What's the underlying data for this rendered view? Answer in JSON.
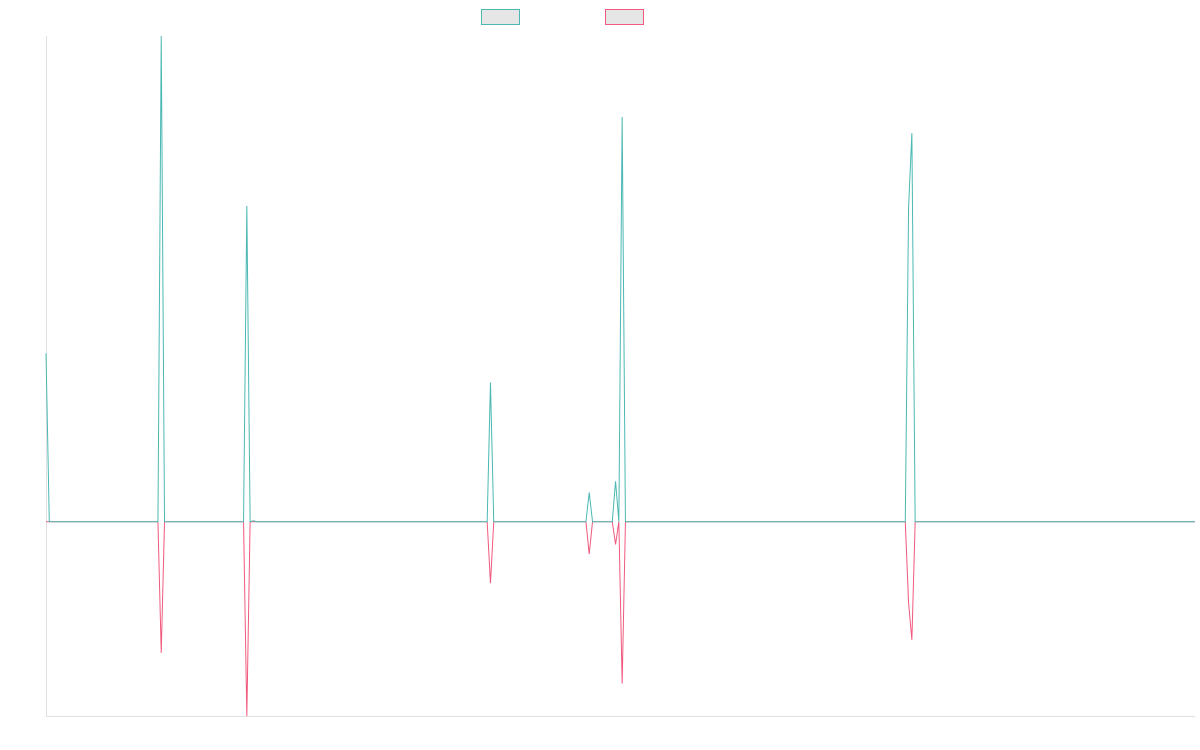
{
  "colors": {
    "series_0": "#4bb8b3",
    "series_1": "#f05a7e",
    "legend_fill": "#e6e6e6",
    "axis": "#e0e0e0"
  },
  "chart_data": {
    "type": "line",
    "title": "",
    "xlabel": "",
    "ylabel": "",
    "legend_position": "top-center",
    "grid": false,
    "xlim": [
      0,
      349
    ],
    "ylim": [
      -600,
      1500
    ],
    "series": [
      {
        "color": "#4bb8b3",
        "points": [
          [
            0,
            520
          ],
          [
            1,
            0
          ],
          [
            34,
            0
          ],
          [
            35,
            1500
          ],
          [
            36,
            0
          ],
          [
            60,
            0
          ],
          [
            61,
            975
          ],
          [
            62,
            0
          ],
          [
            63,
            3
          ],
          [
            64,
            0
          ],
          [
            134,
            0
          ],
          [
            135,
            430
          ],
          [
            136,
            0
          ],
          [
            164,
            0
          ],
          [
            165,
            90
          ],
          [
            166,
            0
          ],
          [
            172,
            0
          ],
          [
            173,
            125
          ],
          [
            174,
            0
          ],
          [
            175,
            1250
          ],
          [
            176,
            0
          ],
          [
            261,
            0
          ],
          [
            262,
            970
          ],
          [
            263,
            1200
          ],
          [
            264,
            0
          ],
          [
            349,
            0
          ]
        ]
      },
      {
        "color": "#f05a7e",
        "points": [
          [
            0,
            0
          ],
          [
            34,
            0
          ],
          [
            35,
            -405
          ],
          [
            36,
            0
          ],
          [
            60,
            0
          ],
          [
            61,
            -600
          ],
          [
            62,
            0
          ],
          [
            134,
            0
          ],
          [
            135,
            -190
          ],
          [
            136,
            0
          ],
          [
            164,
            0
          ],
          [
            165,
            -100
          ],
          [
            166,
            0
          ],
          [
            172,
            0
          ],
          [
            173,
            -70
          ],
          [
            174,
            0
          ],
          [
            175,
            -500
          ],
          [
            176,
            0
          ],
          [
            261,
            0
          ],
          [
            262,
            -250
          ],
          [
            263,
            -365
          ],
          [
            264,
            0
          ],
          [
            349,
            0
          ]
        ]
      }
    ]
  }
}
